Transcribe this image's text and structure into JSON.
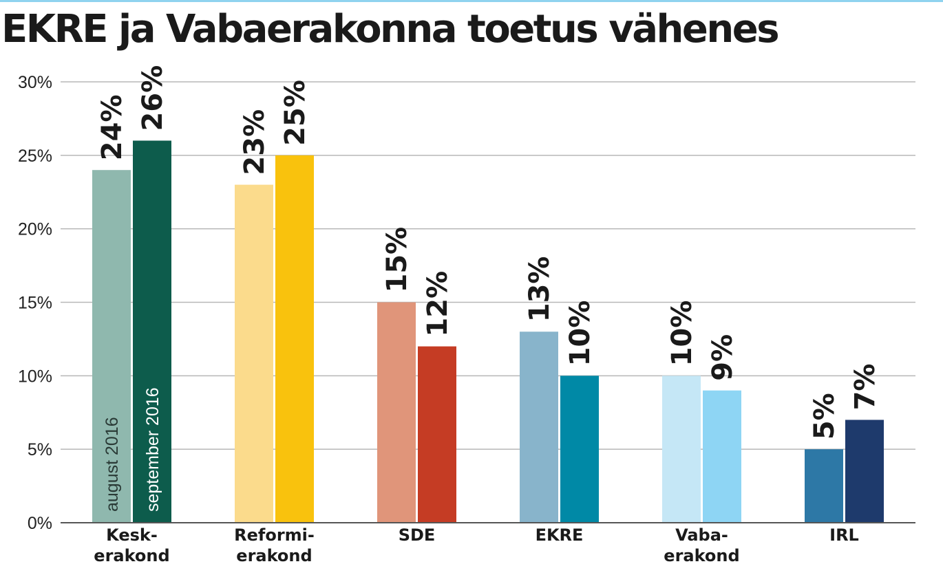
{
  "title": "EKRE ja Vabaerakonna toetus vähenes",
  "chart_data": {
    "type": "bar",
    "title": "EKRE ja Vabaerakonna toetus vähenes",
    "xlabel": "",
    "ylabel": "",
    "ylim": [
      0,
      30
    ],
    "yticks": [
      "0%",
      "5%",
      "10%",
      "15%",
      "20%",
      "25%",
      "30%"
    ],
    "grid": true,
    "legend_placement": "inside first bars",
    "categories": [
      [
        "Kesk-",
        "erakond"
      ],
      [
        "Reformi-",
        "erakond"
      ],
      [
        "SDE"
      ],
      [
        "EKRE"
      ],
      [
        "Vaba-",
        "erakond"
      ],
      [
        "IRL"
      ]
    ],
    "series": [
      {
        "name": "august 2016",
        "values": [
          24,
          23,
          15,
          13,
          10,
          5
        ],
        "labels": [
          "24%",
          "23%",
          "15%",
          "13%",
          "10%",
          "5%"
        ],
        "colors": [
          "#8fb8ae",
          "#fbdb8c",
          "#e0957a",
          "#88b4cb",
          "#c5e7f6",
          "#2d78a6"
        ]
      },
      {
        "name": "september 2016",
        "values": [
          26,
          25,
          12,
          10,
          9,
          7
        ],
        "labels": [
          "26%",
          "25%",
          "12%",
          "10%",
          "9%",
          "7%"
        ],
        "colors": [
          "#0d5c4c",
          "#f9c20d",
          "#c53c24",
          "#0089a6",
          "#8ed5f4",
          "#1e3a6c"
        ]
      }
    ]
  }
}
